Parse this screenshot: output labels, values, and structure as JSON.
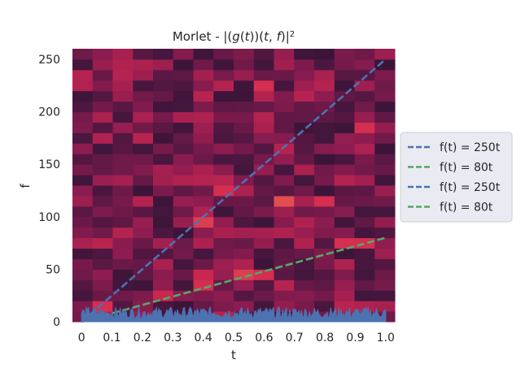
{
  "chart_data": {
    "type": "heatmap",
    "title": "Morlet - |(g(t))(t,f)|²",
    "xlabel": "t",
    "ylabel": "f",
    "xlim": [
      -0.03,
      1.03
    ],
    "ylim": [
      0,
      260
    ],
    "xticks": [
      0,
      0.1,
      0.2,
      0.3,
      0.4,
      0.5,
      0.6,
      0.7,
      0.8,
      0.9,
      1.0
    ],
    "xtick_labels": [
      "0",
      "0.1",
      "0.2",
      "0.3",
      "0.4",
      "0.5",
      "0.6",
      "0.7",
      "0.8",
      "0.9",
      "1.0"
    ],
    "yticks": [
      0,
      50,
      100,
      150,
      200,
      250
    ],
    "ytick_labels": [
      "0",
      "50",
      "100",
      "150",
      "200",
      "250"
    ],
    "grid": false,
    "colormap": "rocket",
    "legend_position": "center-right",
    "heatmap": {
      "t_bins": 16,
      "f_bins": 26,
      "t_range": [
        -0.03,
        1.03
      ],
      "f_range": [
        0,
        260
      ],
      "hot_cells": [
        {
          "t": 0.06,
          "f": 15,
          "level": 0.8
        },
        {
          "t": 0.3,
          "f": 25,
          "level": 0.75
        },
        {
          "t": 0.4,
          "f": 35,
          "level": 0.8
        },
        {
          "t": 0.53,
          "f": 45,
          "level": 0.85
        },
        {
          "t": 0.6,
          "f": 45,
          "level": 0.8
        },
        {
          "t": 0.86,
          "f": 75,
          "level": 0.8
        },
        {
          "t": 0.93,
          "f": 75,
          "level": 0.8
        },
        {
          "t": 0.4,
          "f": 95,
          "level": 0.85
        },
        {
          "t": 0.66,
          "f": 115,
          "level": 0.9
        },
        {
          "t": 0.8,
          "f": 115,
          "level": 0.8
        },
        {
          "t": 0.46,
          "f": 125,
          "level": 0.8
        },
        {
          "t": 0.6,
          "f": 225,
          "level": 0.8
        },
        {
          "t": 0.93,
          "f": 185,
          "level": 0.8
        },
        {
          "t": 0.4,
          "f": 45,
          "level": 0.75
        }
      ]
    },
    "series": [
      {
        "name": "f(t) = 250t",
        "type": "line",
        "style": "dashed",
        "color": "#4c72b0",
        "x": [
          0,
          1.0
        ],
        "y": [
          0,
          250
        ]
      },
      {
        "name": "f(t) = 80t",
        "type": "line",
        "style": "dashed",
        "color": "#55a868",
        "x": [
          0,
          1.0
        ],
        "y": [
          0,
          80
        ]
      },
      {
        "name": "f(t) = 250t",
        "type": "line",
        "style": "dashed",
        "color": "#4c72b0",
        "x": [
          0,
          1.0
        ],
        "y": [
          0,
          250
        ]
      },
      {
        "name": "f(t) = 80t",
        "type": "line",
        "style": "dashed",
        "color": "#55a868",
        "x": [
          0,
          1.0
        ],
        "y": [
          0,
          80
        ]
      },
      {
        "type": "area",
        "color": "#4c72b0",
        "x_range": [
          0,
          1.0
        ],
        "amplitude_range": [
          3,
          14
        ]
      }
    ]
  },
  "legend": {
    "items": [
      {
        "label": "f(t) = 250t",
        "color": "#4c72b0"
      },
      {
        "label": "f(t) = 80t",
        "color": "#55a868"
      },
      {
        "label": "f(t) = 250t",
        "color": "#4c72b0"
      },
      {
        "label": "f(t) = 80t",
        "color": "#55a868"
      }
    ]
  }
}
